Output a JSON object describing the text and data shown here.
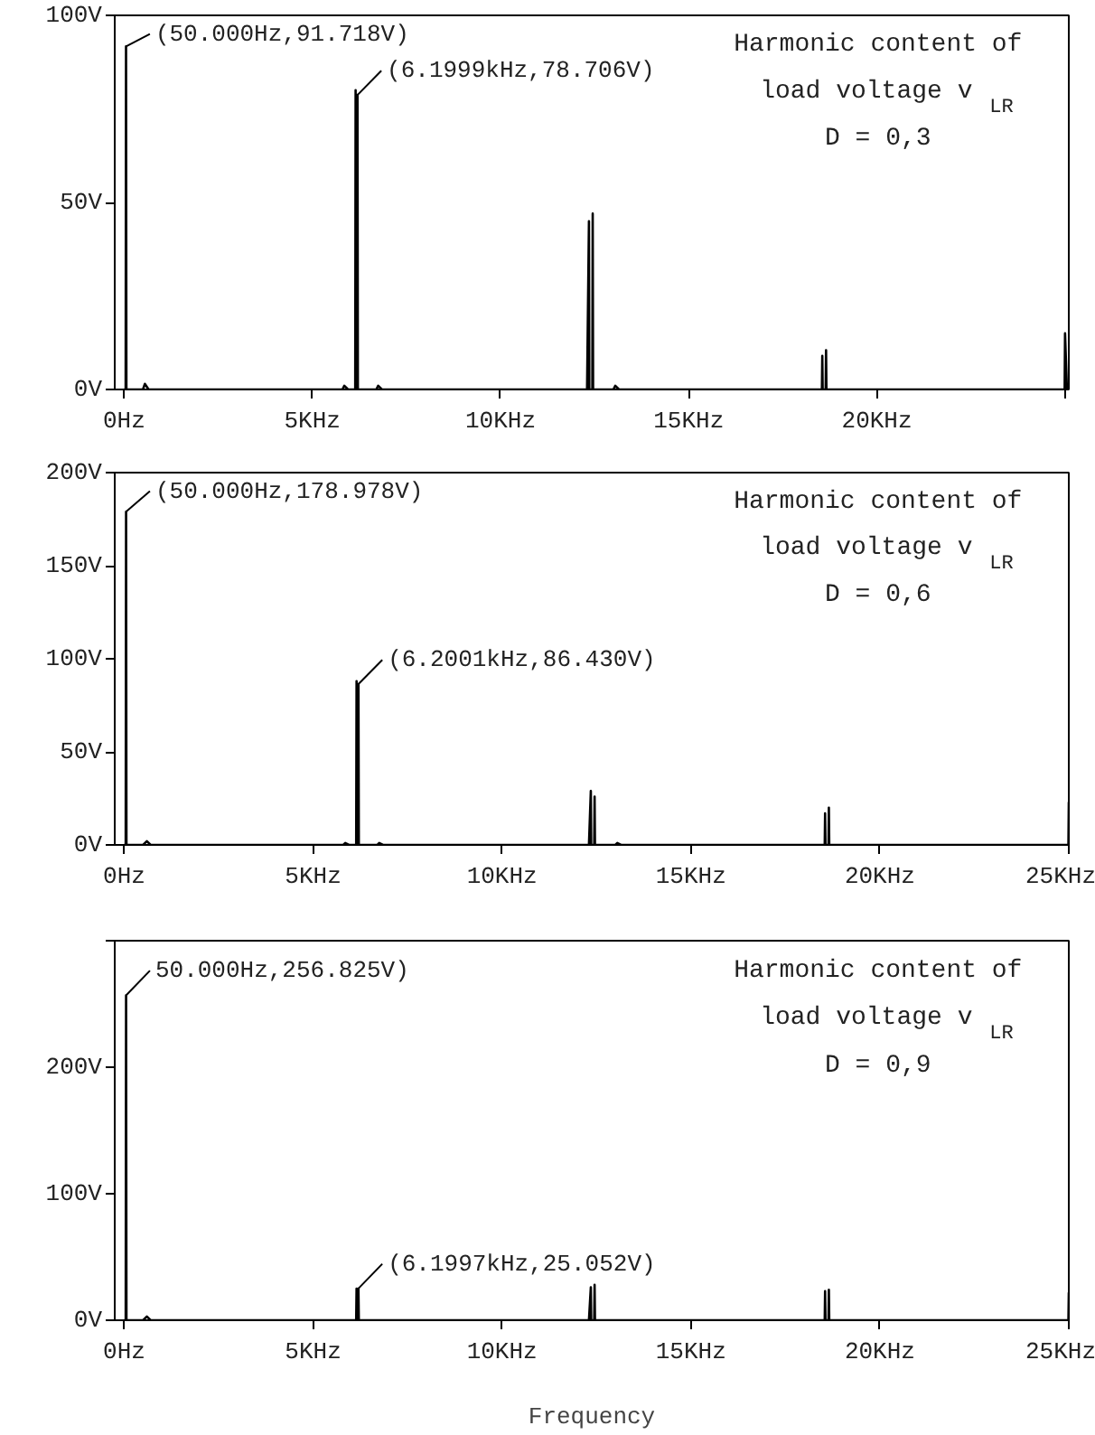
{
  "chart_data": [
    {
      "type": "line",
      "xlim": [
        -0.25,
        25.1
      ],
      "ylim": [
        0,
        100
      ],
      "xticks": [
        {
          "value": 0,
          "label": "0Hz"
        },
        {
          "value": 5,
          "label": "5KHz"
        },
        {
          "value": 10,
          "label": "10KHz"
        },
        {
          "value": 15,
          "label": "15KHz"
        },
        {
          "value": 20,
          "label": "20KHz"
        },
        {
          "value": 25,
          "label": null
        }
      ],
      "yticks": [
        {
          "value": 0,
          "label": "0V"
        },
        {
          "value": 50,
          "label": "50V"
        },
        {
          "value": 100,
          "label": "100V"
        }
      ],
      "series": [
        {
          "color": "#000000",
          "x": [
            0,
            0.04,
            0.05,
            0.06,
            0.5,
            0.55,
            0.65,
            5.8,
            5.85,
            5.95,
            6.14,
            6.15,
            6.16,
            6.19,
            6.1999,
            6.21,
            6.7,
            6.75,
            6.85,
            12.3,
            12.35,
            12.36,
            12.44,
            12.45,
            12.46,
            13.0,
            13.05,
            13.15,
            18.54,
            18.55,
            18.56,
            18.64,
            18.65,
            18.66,
            24.99,
            25.0,
            25.05
          ],
          "values": [
            0,
            0,
            91.718,
            0,
            0,
            1.5,
            0,
            0,
            1,
            0,
            0,
            80,
            0,
            0,
            78.706,
            0,
            0,
            1,
            0,
            0,
            45,
            0,
            0,
            47,
            0,
            0,
            1,
            0,
            0,
            9,
            0,
            0,
            10.5,
            0,
            0,
            15,
            0
          ]
        }
      ],
      "annotations": [
        {
          "text": "(50.000Hz,91.718V)",
          "x": 0.05,
          "y": 91.718
        },
        {
          "text": "(6.1999kHz,78.706V)",
          "x": 6.1999,
          "y": 78.706
        },
        "Harmonic content of",
        "load voltage  v$_{LR}$",
        "D = 0,3"
      ]
    },
    {
      "type": "line",
      "xlim": [
        -0.25,
        25
      ],
      "ylim": [
        0,
        200
      ],
      "xticks": [
        {
          "value": 0,
          "label": "0Hz"
        },
        {
          "value": 5,
          "label": "5KHz"
        },
        {
          "value": 10,
          "label": "10KHz"
        },
        {
          "value": 15,
          "label": "15KHz"
        },
        {
          "value": 20,
          "label": "20KHz"
        },
        {
          "value": 25,
          "label": "25KHz"
        }
      ],
      "yticks": [
        {
          "value": 0,
          "label": "0V"
        },
        {
          "value": 50,
          "label": "50V"
        },
        {
          "value": 100,
          "label": "100V"
        },
        {
          "value": 150,
          "label": "150V"
        },
        {
          "value": 200,
          "label": "200V"
        }
      ],
      "series": [
        {
          "color": "#000000",
          "x": [
            0,
            0.04,
            0.05,
            0.06,
            0.5,
            0.6,
            0.7,
            5.8,
            5.85,
            5.95,
            6.14,
            6.15,
            6.16,
            6.19,
            6.2001,
            6.21,
            6.7,
            6.75,
            6.85,
            12.3,
            12.35,
            12.36,
            12.44,
            12.45,
            12.46,
            13.0,
            13.05,
            13.15,
            18.54,
            18.55,
            18.56,
            18.64,
            18.65,
            18.66,
            24.99,
            25.0
          ],
          "values": [
            0,
            0,
            178.978,
            0,
            0,
            2,
            0,
            0,
            1,
            0,
            0,
            88,
            0,
            0,
            86.43,
            0,
            0,
            1,
            0,
            0,
            29,
            0,
            0,
            26,
            0,
            0,
            1,
            0,
            0,
            17,
            0,
            0,
            20,
            0,
            0,
            23
          ]
        }
      ],
      "annotations": [
        {
          "text": "(50.000Hz,178.978V)",
          "x": 0.05,
          "y": 178.978
        },
        {
          "text": "(6.2001kHz,86.430V)",
          "x": 6.2001,
          "y": 86.43
        },
        "Harmonic content of",
        "load voltage  v$_{LR}$",
        "D = 0,6"
      ]
    },
    {
      "type": "line",
      "xlim": [
        -0.25,
        25
      ],
      "ylim": [
        0,
        300
      ],
      "xlabel": "Frequency",
      "xticks": [
        {
          "value": 0,
          "label": "0Hz"
        },
        {
          "value": 5,
          "label": "5KHz"
        },
        {
          "value": 10,
          "label": "10KHz"
        },
        {
          "value": 15,
          "label": "15KHz"
        },
        {
          "value": 20,
          "label": "20KHz"
        },
        {
          "value": 25,
          "label": "25KHz"
        }
      ],
      "yticks": [
        {
          "value": 0,
          "label": "0V"
        },
        {
          "value": 100,
          "label": "100V"
        },
        {
          "value": 200,
          "label": "200V"
        },
        {
          "value": 300,
          "label": null
        }
      ],
      "series": [
        {
          "color": "#000000",
          "x": [
            0,
            0.04,
            0.05,
            0.06,
            0.5,
            0.6,
            0.7,
            6.14,
            6.15,
            6.16,
            6.19,
            6.1997,
            6.21,
            12.3,
            12.35,
            12.36,
            12.44,
            12.45,
            12.46,
            18.54,
            18.55,
            18.56,
            18.64,
            18.65,
            18.66,
            24.99,
            25.0
          ],
          "values": [
            0,
            0,
            256.825,
            0,
            0,
            3,
            0,
            0,
            25,
            0,
            0,
            25.052,
            0,
            0,
            26,
            0,
            0,
            28,
            0,
            0,
            23,
            0,
            0,
            24,
            0,
            0,
            22
          ]
        }
      ],
      "annotations": [
        {
          "text": "50.000Hz,256.825V)",
          "x": 0.05,
          "y": 256.825
        },
        {
          "text": "(6.1997kHz,25.052V)",
          "x": 6.1997,
          "y": 25.052
        },
        "Harmonic content of",
        "load voltage  v$_{LR}$",
        "D = 0,9"
      ]
    }
  ]
}
